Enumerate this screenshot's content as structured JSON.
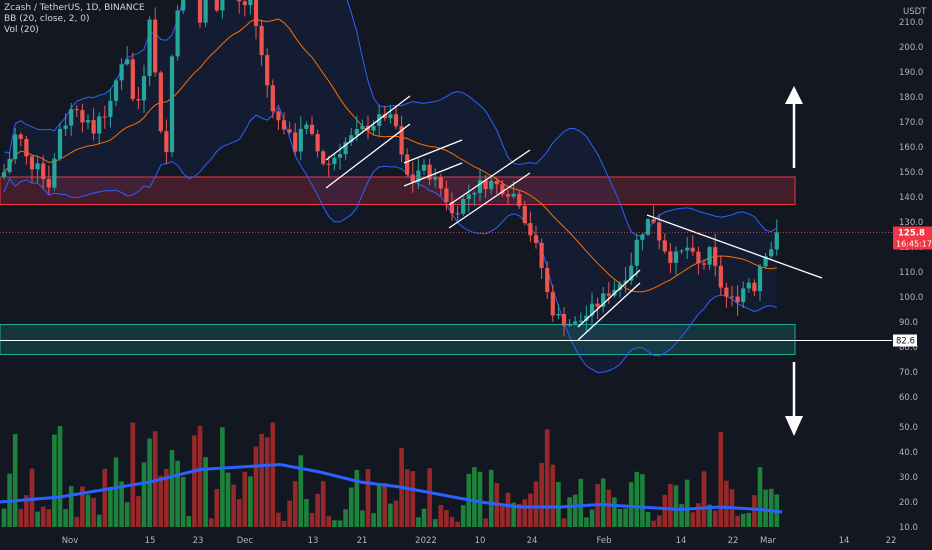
{
  "header": {
    "symbol_line": "Zcash / TetherUS, 1D, BINANCE",
    "bb_line": "BB (20, close, 2, 0)",
    "vol_line": "Vol (20)"
  },
  "price_axis": {
    "currency": "USDT",
    "ticks": [
      "210.0",
      "200.0",
      "190.0",
      "180.0",
      "170.0",
      "160.0",
      "150.0",
      "140.0",
      "130.0",
      "120.0",
      "110.0",
      "100.0",
      "90.0",
      "80.0"
    ],
    "vol_ticks": [
      "70.0",
      "60.0",
      "50.0",
      "40.0",
      "30.0",
      "20.0",
      "10.0"
    ],
    "current_price": "125.8",
    "countdown": "16:45:17",
    "horizontal_line_label": "82.6"
  },
  "time_axis": {
    "ticks": [
      "Nov",
      "15",
      "23",
      "Dec",
      "13",
      "21",
      "2022",
      "10",
      "24",
      "Feb",
      "14",
      "22",
      "Mar",
      "14",
      "22"
    ]
  },
  "colors": {
    "background": "#131722",
    "up": "#26a69a",
    "down": "#ef5350",
    "vol_up": "#1e8e3e",
    "vol_down": "#a52a2a",
    "bb_band": "#2962ff",
    "bb_basis": "#ff6d00",
    "vol_ma": "#2962ff",
    "resistance_zone": "#f23645",
    "support_zone": "#22ab94",
    "price_label_bg": "#f23645"
  },
  "chart_data": {
    "type": "candlestick",
    "price_range": [
      75,
      217
    ],
    "volume_range": [
      8,
      72
    ],
    "zones": [
      {
        "name": "resistance",
        "from": 137,
        "to": 148
      },
      {
        "name": "support",
        "from": 77,
        "to": 89
      }
    ],
    "horizontal_line": 82.6,
    "current_price": 125.8
  }
}
